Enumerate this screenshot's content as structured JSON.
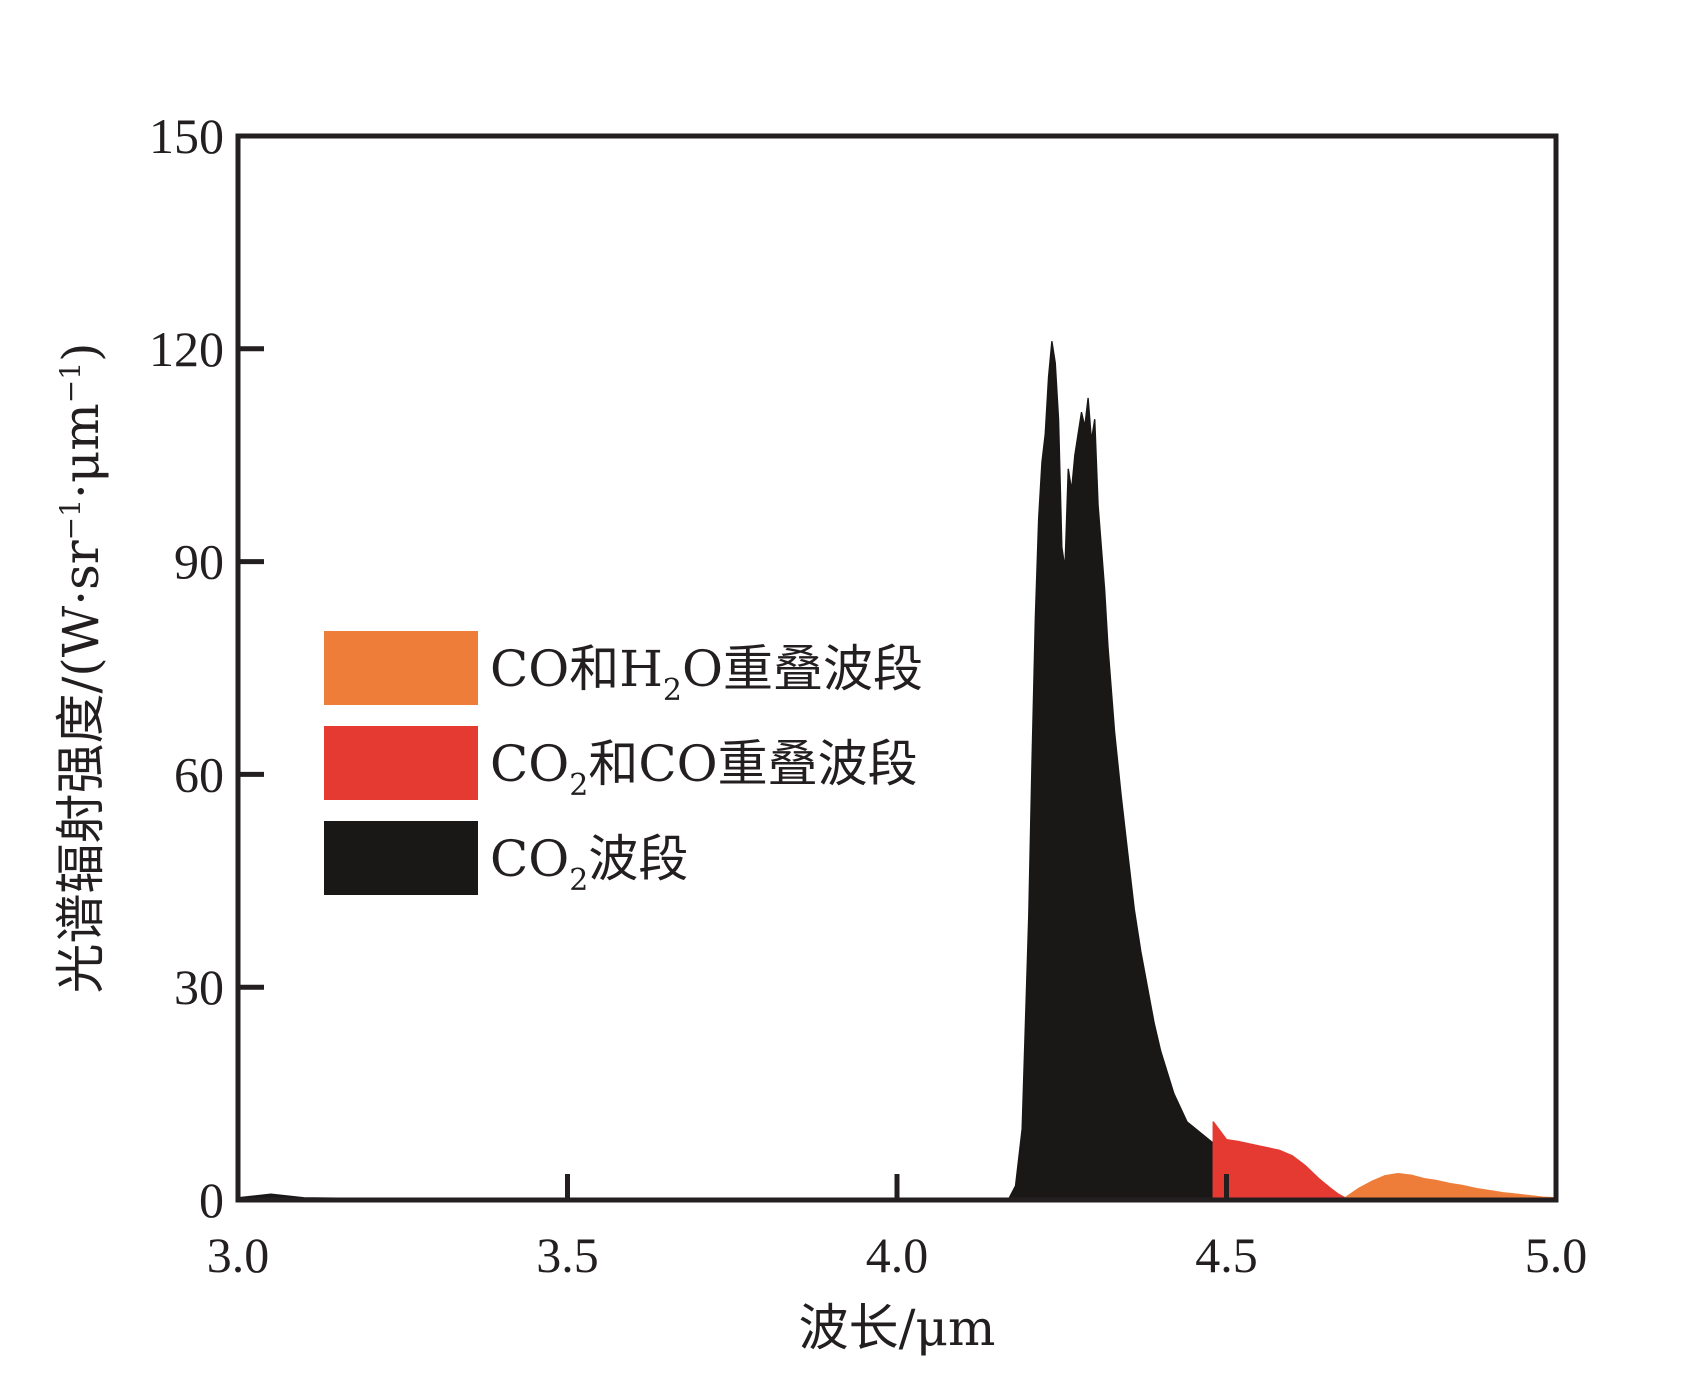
{
  "chart_data": {
    "type": "area",
    "title": "",
    "xlabel": "波长/μm",
    "ylabel_main": "光谱辐射强度/(W·sr",
    "ylabel_sup1": "−1",
    "ylabel_mid": "·μm",
    "ylabel_sup2": "−1",
    "ylabel_end": ")",
    "xlim": [
      3.0,
      5.0
    ],
    "ylim": [
      0,
      150
    ],
    "x_ticks": [
      "3.0",
      "3.5",
      "4.0",
      "4.5",
      "5.0"
    ],
    "y_ticks": [
      "0",
      "30",
      "60",
      "90",
      "120",
      "150"
    ],
    "grid": false,
    "legend_position": "center-left",
    "legend": [
      {
        "parts": [
          "CO和H",
          "2",
          "O重叠波段"
        ],
        "color": "#ee7d3a"
      },
      {
        "parts": [
          "CO",
          "2",
          "和CO重叠波段"
        ],
        "color": "#e53a32"
      },
      {
        "parts": [
          "CO",
          "2",
          "波段"
        ],
        "color": "#1a1717"
      }
    ],
    "series": [
      {
        "band": "CO2",
        "color": "#1a1717",
        "x": [
          3.0,
          3.05,
          3.1,
          3.2,
          3.3,
          3.4,
          3.5,
          3.6,
          3.7,
          3.8,
          3.9,
          4.0,
          4.1,
          4.17,
          4.18,
          4.19,
          4.195,
          4.2,
          4.205,
          4.21,
          4.215,
          4.22,
          4.225,
          4.23,
          4.235,
          4.24,
          4.245,
          4.25,
          4.255,
          4.26,
          4.265,
          4.27,
          4.275,
          4.28,
          4.285,
          4.29,
          4.295,
          4.3,
          4.305,
          4.31,
          4.315,
          4.32,
          4.33,
          4.34,
          4.35,
          4.36,
          4.37,
          4.38,
          4.39,
          4.4,
          4.42,
          4.44,
          4.46,
          4.48
        ],
        "values": [
          0.3,
          0.8,
          0.3,
          0.2,
          0.2,
          0.2,
          0.1,
          0.1,
          0.1,
          0.1,
          0.1,
          0.1,
          0.1,
          0.2,
          2,
          10,
          25,
          40,
          62,
          82,
          96,
          104,
          108,
          116,
          121,
          118,
          110,
          92,
          89,
          103,
          100,
          105,
          108,
          111,
          109,
          113,
          107,
          110,
          98,
          92,
          86,
          78,
          66,
          57,
          49,
          41,
          35,
          30,
          25,
          21,
          15,
          11,
          9.5,
          8
        ]
      },
      {
        "band": "CO2和CO",
        "color": "#e53a32",
        "x": [
          4.48,
          4.5,
          4.52,
          4.55,
          4.58,
          4.6,
          4.62,
          4.64,
          4.66,
          4.67,
          4.68
        ],
        "values": [
          11,
          8.5,
          8.2,
          7.6,
          7.0,
          6.2,
          4.8,
          3.0,
          1.5,
          0.8,
          0.3
        ]
      },
      {
        "band": "CO和H2O",
        "color": "#ee7d3a",
        "x": [
          4.68,
          4.7,
          4.72,
          4.74,
          4.76,
          4.78,
          4.8,
          4.82,
          4.84,
          4.86,
          4.88,
          4.9,
          4.92,
          4.94,
          4.96,
          4.98,
          5.0
        ],
        "values": [
          0.3,
          1.6,
          2.6,
          3.4,
          3.7,
          3.5,
          3.0,
          2.7,
          2.3,
          2.0,
          1.6,
          1.3,
          1.0,
          0.8,
          0.6,
          0.4,
          0.3
        ]
      }
    ]
  }
}
